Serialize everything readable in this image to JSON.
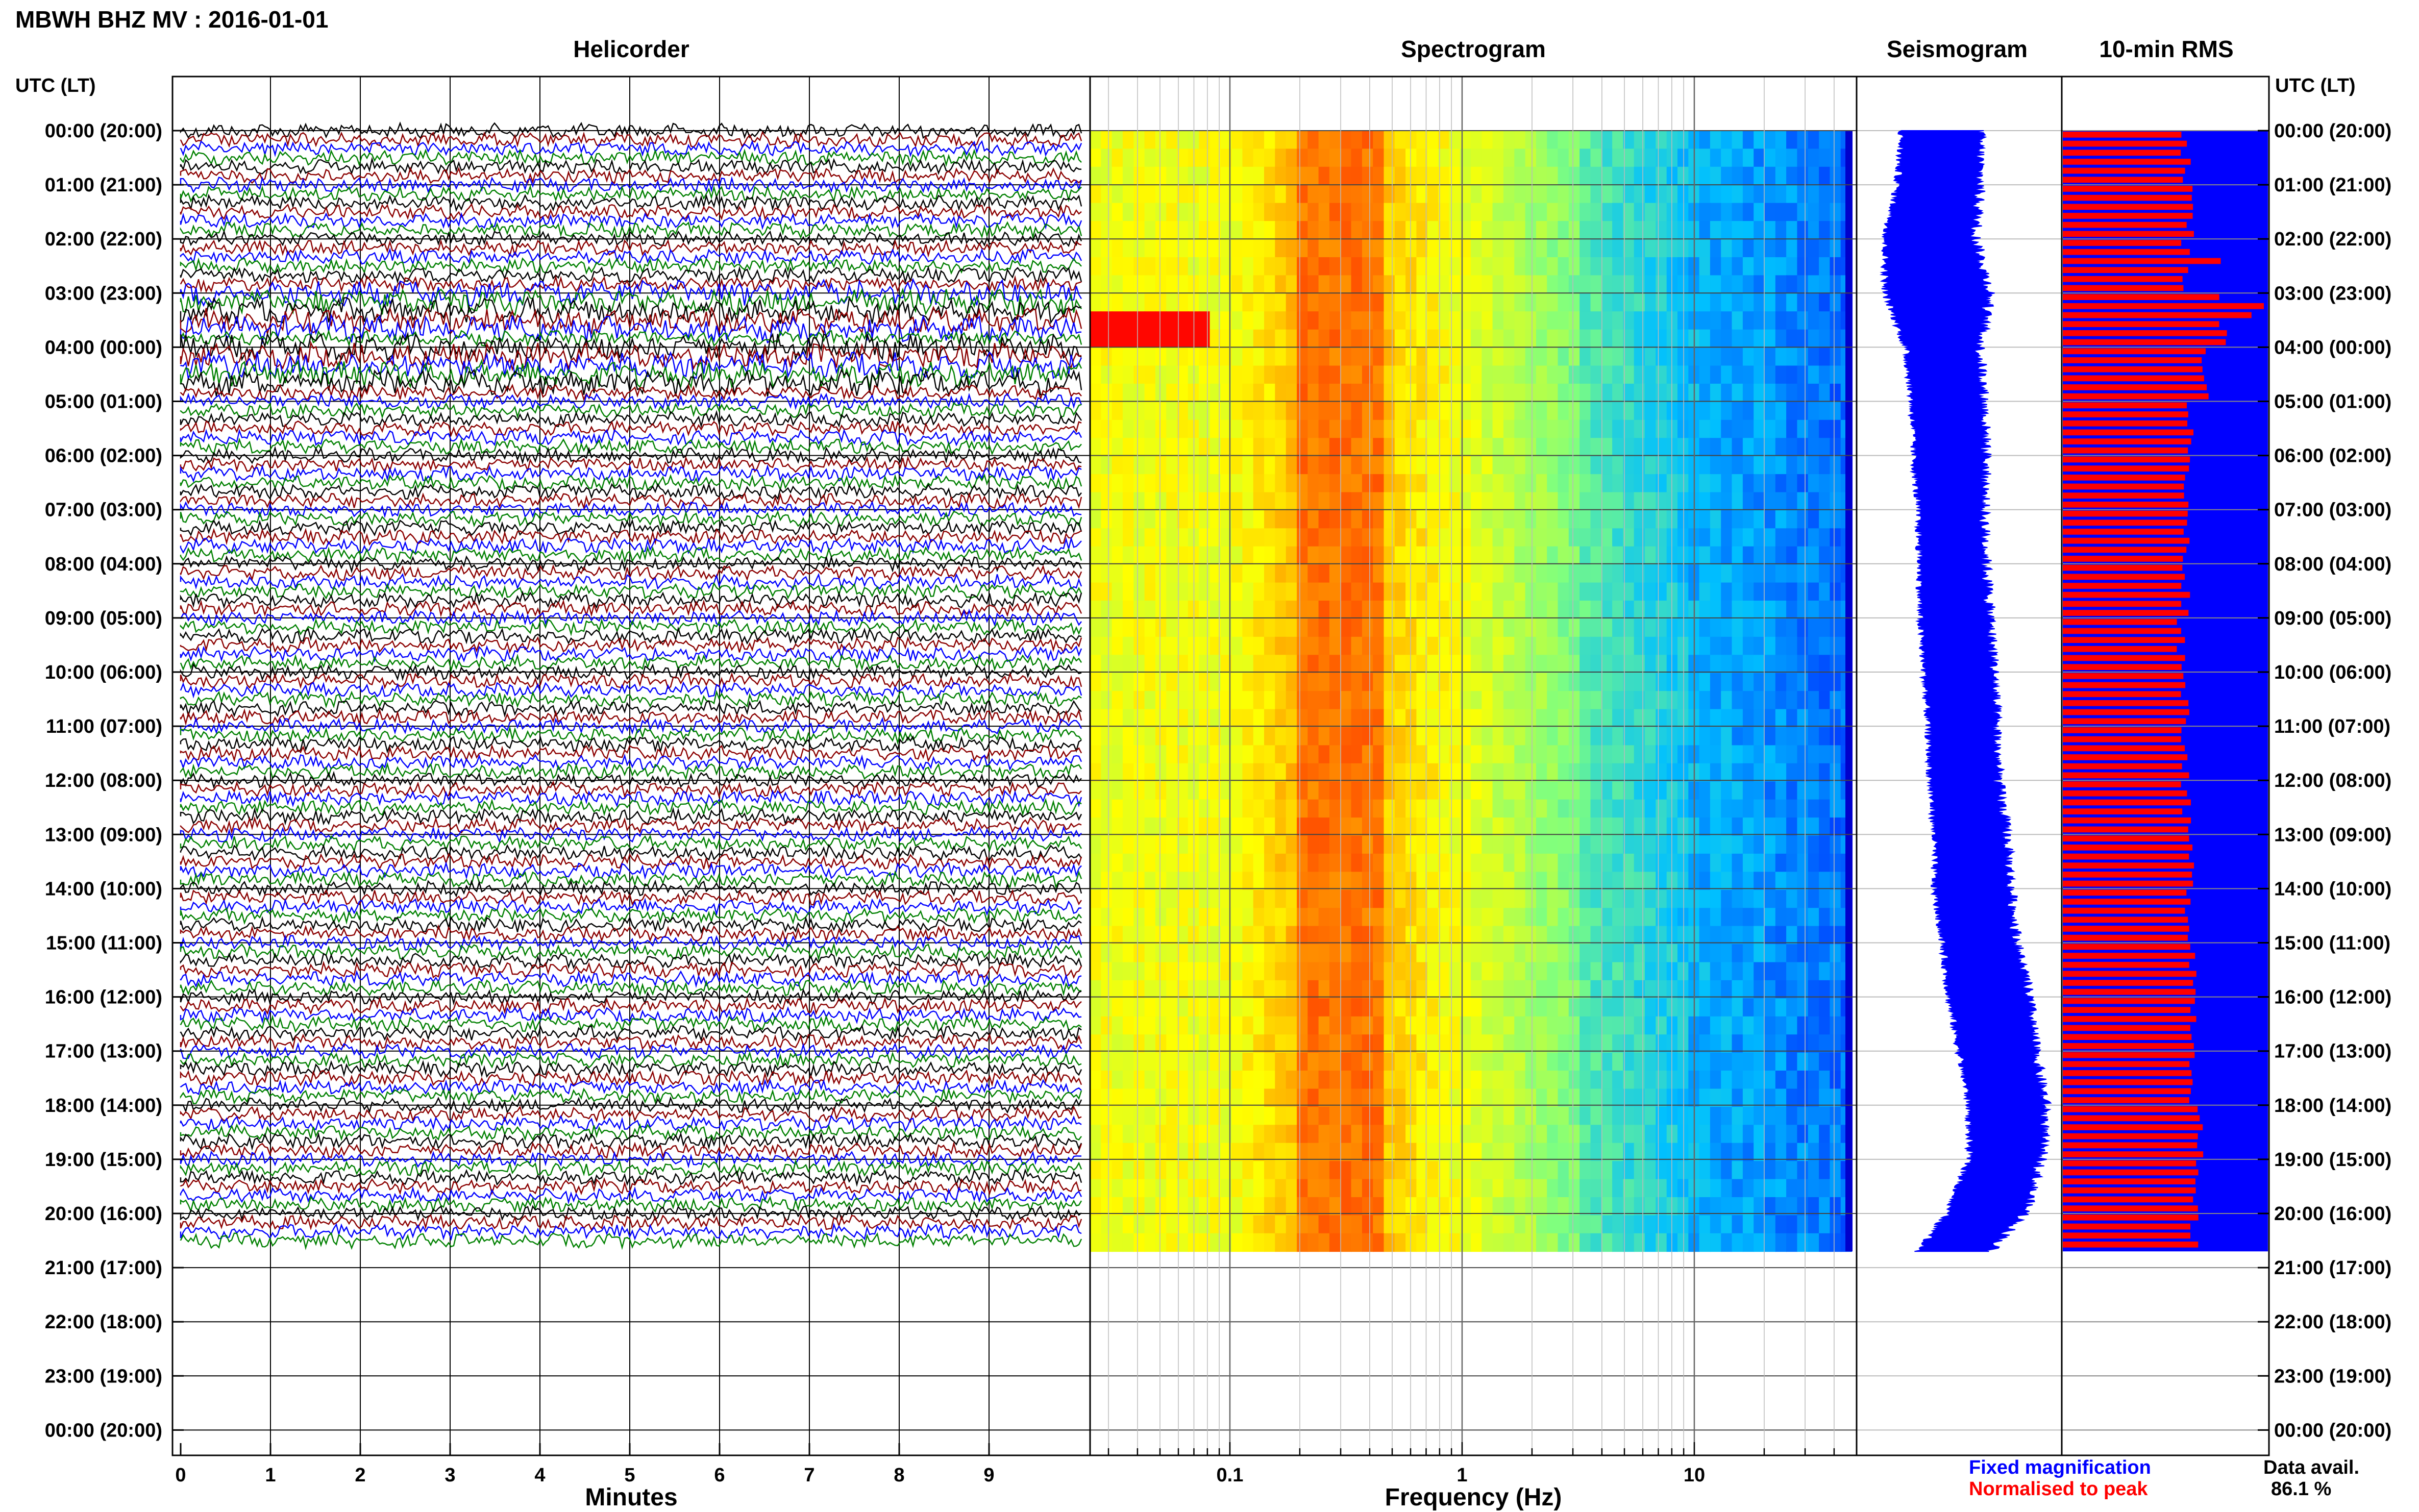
{
  "header": {
    "title": "MBWH BHZ MV : 2016-01-01"
  },
  "panels": {
    "helicorder": {
      "title": "Helicorder"
    },
    "spectrogram": {
      "title": "Spectrogram"
    },
    "seismogram": {
      "title": "Seismogram"
    },
    "rms": {
      "title": "10-min RMS"
    }
  },
  "legend": {
    "fixed": "Fixed magnification",
    "normalised": "Normalised to peak",
    "fixed_color": "#0000ff",
    "normalised_color": "#ff0000"
  },
  "data_availability": {
    "label": "Data avail.",
    "value": "86.1 %"
  },
  "chart_data": [
    {
      "type": "line",
      "panel": "helicorder",
      "left_axis_title": "UTC (LT)",
      "right_axis_title": "UTC (LT)",
      "row_labels": [
        "00:00 (20:00)",
        "01:00 (21:00)",
        "02:00 (22:00)",
        "03:00 (23:00)",
        "04:00 (00:00)",
        "05:00 (01:00)",
        "06:00 (02:00)",
        "07:00 (03:00)",
        "08:00 (04:00)",
        "09:00 (05:00)",
        "10:00 (06:00)",
        "11:00 (07:00)",
        "12:00 (08:00)",
        "13:00 (09:00)",
        "14:00 (10:00)",
        "15:00 (11:00)",
        "16:00 (12:00)",
        "17:00 (13:00)",
        "18:00 (14:00)",
        "19:00 (15:00)",
        "20:00 (16:00)",
        "21:00 (17:00)",
        "22:00 (18:00)",
        "23:00 (19:00)",
        "00:00 (20:00)"
      ],
      "xlabel": "Minutes",
      "x_ticks": [
        "0",
        "1",
        "2",
        "3",
        "4",
        "5",
        "6",
        "7",
        "8",
        "9"
      ],
      "xlim": [
        0,
        10
      ],
      "trace_colors": [
        "#000000",
        "#8b0000",
        "#0000ff",
        "#008000"
      ],
      "data_end_hour": 20.7,
      "noisy_hours": [
        3,
        4
      ],
      "grid": true
    },
    {
      "type": "heatmap",
      "panel": "spectrogram",
      "xlabel": "Frequency (Hz)",
      "x_scale": "log",
      "x_ticks": [
        "0.1",
        "1",
        "10"
      ],
      "x_tick_values": [
        0.1,
        1,
        10
      ],
      "xlim": [
        0.025,
        50
      ],
      "data_end_hour": 20.7,
      "colormap": [
        "#0000ff",
        "#00bfff",
        "#7fff7f",
        "#ffff00",
        "#ff8000",
        "#ff0000"
      ],
      "peak_band_hz": [
        0.2,
        0.4
      ],
      "grid": true
    },
    {
      "type": "area",
      "panel": "seismogram",
      "color": "#0000ff",
      "hours": [
        0,
        1,
        2,
        3,
        4,
        5,
        6,
        7,
        8,
        9,
        10,
        11,
        12,
        13,
        14,
        15,
        16,
        17,
        18,
        19,
        20,
        20.7
      ],
      "left_edge": [
        0.22,
        0.2,
        0.14,
        0.14,
        0.24,
        0.27,
        0.28,
        0.3,
        0.31,
        0.31,
        0.33,
        0.35,
        0.36,
        0.38,
        0.38,
        0.42,
        0.45,
        0.5,
        0.55,
        0.55,
        0.44,
        0.3
      ],
      "right_edge": [
        0.6,
        0.6,
        0.58,
        0.65,
        0.6,
        0.62,
        0.63,
        0.62,
        0.63,
        0.65,
        0.67,
        0.68,
        0.69,
        0.73,
        0.75,
        0.78,
        0.84,
        0.87,
        0.92,
        0.9,
        0.82,
        0.65
      ],
      "data_end_hour": 20.7
    },
    {
      "type": "bar",
      "panel": "rms",
      "series": [
        {
          "name": "Fixed magnification",
          "color": "#0000ff",
          "value": 1.0
        },
        {
          "name": "Normalised to peak",
          "color": "#ff0000",
          "hourly_levels": [
            0.6,
            0.62,
            0.6,
            0.78,
            0.7,
            0.62,
            0.6,
            0.6,
            0.6,
            0.58,
            0.6,
            0.6,
            0.6,
            0.62,
            0.62,
            0.64,
            0.64,
            0.64,
            0.66,
            0.64,
            0.64
          ],
          "peaks": [
            {
              "hour": 2.4,
              "value": 0.77
            },
            {
              "hour": 3.2,
              "value": 0.98
            },
            {
              "hour": 3.35,
              "value": 0.92
            }
          ]
        }
      ],
      "data_end_hour": 20.7
    }
  ]
}
